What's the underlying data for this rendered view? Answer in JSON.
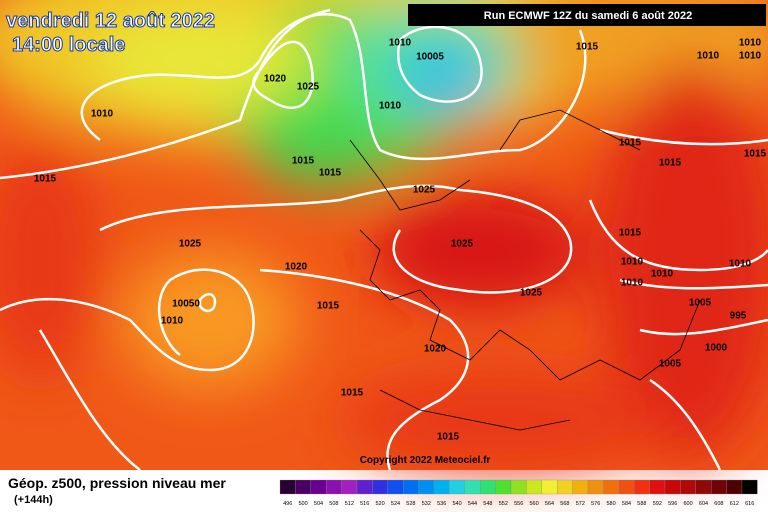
{
  "header": {
    "date": "vendredi 12 août 2022",
    "time": "14:00 locale",
    "run": "Run ECMWF 12Z du samedi 6 août 2022"
  },
  "isobar_labels": [
    "1010",
    "10005",
    "1015",
    "1010",
    "1010",
    "1010",
    "1020",
    "1025",
    "1010",
    "1010",
    "1015",
    "1015",
    "1015",
    "1015",
    "1015",
    "1015",
    "1025",
    "1025",
    "1025",
    "1015",
    "1010",
    "1010",
    "1010",
    "1020",
    "1010",
    "1025",
    "10050",
    "1015",
    "1005",
    "995",
    "1010",
    "1020",
    "1000",
    "1005",
    "1015",
    "1015"
  ],
  "copyright": "Copyright 2022 Meteociel.fr",
  "footer": {
    "title": "Géop. z500, pression niveau mer",
    "lead": "(+144h)"
  },
  "legend": {
    "scale": [
      496,
      500,
      504,
      508,
      512,
      516,
      520,
      524,
      528,
      532,
      536,
      540,
      544,
      548,
      552,
      556,
      560,
      564,
      568,
      572,
      576,
      580,
      584,
      588,
      592,
      596,
      600,
      604,
      608,
      612,
      616
    ],
    "colors": [
      "#2a0030",
      "#4a0060",
      "#6a0090",
      "#8a10b0",
      "#a020c0",
      "#6020d0",
      "#3030e0",
      "#1050f0",
      "#0070f0",
      "#0090f0",
      "#00b0f0",
      "#20d0e0",
      "#30e0b0",
      "#30e070",
      "#50e030",
      "#90e020",
      "#c8e820",
      "#f0f030",
      "#f0d020",
      "#f0b010",
      "#f09010",
      "#f07010",
      "#f05010",
      "#f03010",
      "#e01010",
      "#c80808",
      "#b00808",
      "#900808",
      "#700404",
      "#500000",
      "#000000"
    ]
  }
}
